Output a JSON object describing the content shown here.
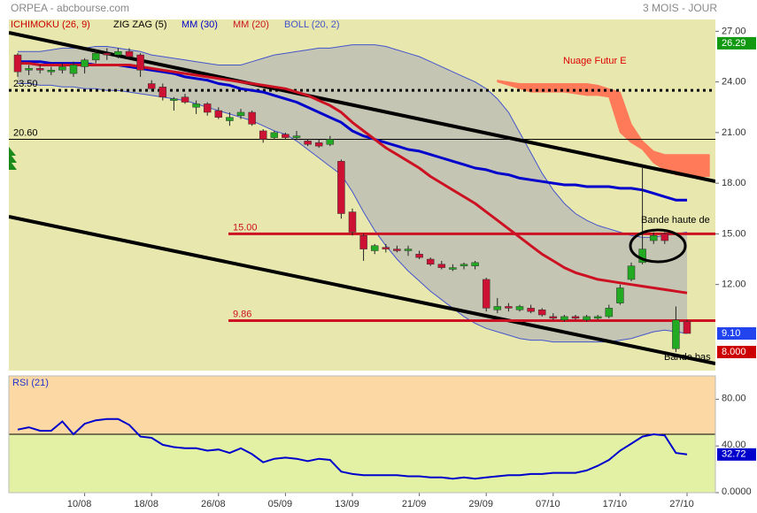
{
  "header": {
    "title": "ORPEA - abcbourse.com",
    "period": "3 MOIS - JOUR"
  },
  "chart_data": [
    {
      "type": "candlestick",
      "categories": [
        null,
        null,
        null,
        null,
        null,
        null,
        "10/08",
        null,
        null,
        null,
        null,
        null,
        "18/08",
        null,
        null,
        null,
        null,
        null,
        "26/08",
        null,
        null,
        null,
        null,
        null,
        "05/09",
        null,
        null,
        null,
        null,
        null,
        "13/09",
        null,
        null,
        null,
        null,
        null,
        "21/09",
        null,
        null,
        null,
        null,
        null,
        "29/09",
        null,
        null,
        null,
        null,
        null,
        "07/10",
        null,
        null,
        null,
        null,
        null,
        "17/10",
        null,
        null,
        null,
        null,
        null,
        "27/10",
        null,
        null
      ],
      "open": [
        25.6,
        24.7,
        24.8,
        24.6,
        24.7,
        24.5,
        24.9,
        25.3,
        25.7,
        25.6,
        25.8,
        25.6,
        23.9,
        23.7,
        22.9,
        23.1,
        22.5,
        22.7,
        22.3,
        21.7,
        22.0,
        22.2,
        21.1,
        20.7,
        20.9,
        20.7,
        20.5,
        20.4,
        20.3,
        19.3,
        16.3,
        14.9,
        14.0,
        14.2,
        14.1,
        14.0,
        13.8,
        13.5,
        13.2,
        12.9,
        13.1,
        13.1,
        12.3,
        10.5,
        10.7,
        10.5,
        10.6,
        10.5,
        10.1,
        9.9,
        10.1,
        9.9,
        10.0,
        10.1,
        10.9,
        12.3,
        13.3,
        14.6,
        15.0,
        8.2,
        9.8,
        null,
        null
      ],
      "high": [
        25.7,
        25.0,
        25.0,
        24.9,
        25.1,
        25.2,
        25.4,
        25.9,
        26.0,
        26.0,
        26.0,
        25.7,
        24.1,
        23.9,
        23.1,
        23.3,
        22.9,
        22.8,
        22.5,
        22.2,
        22.4,
        22.3,
        21.2,
        21.1,
        21.0,
        21.1,
        20.6,
        20.6,
        20.8,
        19.4,
        16.5,
        15.0,
        14.4,
        14.4,
        14.3,
        14.3,
        14.0,
        13.6,
        13.4,
        13.2,
        13.3,
        13.4,
        12.4,
        11.2,
        10.9,
        10.8,
        10.8,
        10.6,
        10.3,
        10.2,
        10.2,
        10.2,
        10.2,
        10.8,
        12.0,
        13.3,
        18.9,
        15.1,
        15.1,
        10.7,
        9.9,
        null,
        null
      ],
      "low": [
        24.3,
        24.4,
        24.5,
        24.4,
        24.5,
        24.3,
        24.5,
        25.1,
        25.3,
        25.4,
        25.4,
        24.3,
        23.5,
        22.9,
        22.3,
        22.7,
        22.1,
        22.0,
        21.8,
        21.4,
        21.8,
        21.4,
        20.4,
        20.6,
        20.6,
        20.6,
        20.2,
        20.1,
        20.2,
        15.9,
        14.9,
        13.4,
        13.8,
        13.9,
        13.9,
        13.7,
        13.5,
        13.1,
        12.9,
        12.8,
        12.9,
        12.9,
        10.4,
        10.3,
        10.4,
        10.4,
        10.3,
        10.1,
        9.9,
        9.8,
        9.9,
        9.8,
        9.9,
        10.0,
        10.8,
        12.2,
        13.2,
        14.4,
        14.4,
        8.0,
        9.1,
        null,
        null
      ],
      "close": [
        24.6,
        24.8,
        24.7,
        24.7,
        24.9,
        25.0,
        25.3,
        25.7,
        25.6,
        25.8,
        25.5,
        24.7,
        23.6,
        23.1,
        23.0,
        22.8,
        22.7,
        22.2,
        21.9,
        21.9,
        22.2,
        21.5,
        20.6,
        21.0,
        20.7,
        20.8,
        20.3,
        20.2,
        20.6,
        16.2,
        15.1,
        14.1,
        14.3,
        14.1,
        14.0,
        14.1,
        13.6,
        13.2,
        13.0,
        13.0,
        13.2,
        13.3,
        10.6,
        10.7,
        10.6,
        10.7,
        10.4,
        10.2,
        10.0,
        10.1,
        10.0,
        10.1,
        10.1,
        10.6,
        11.8,
        13.1,
        14.1,
        14.9,
        14.6,
        9.9,
        9.1,
        null,
        null
      ],
      "up_color": "#22aa22",
      "down_color": "#cc1133",
      "ylim": [
        6.9,
        27.7
      ],
      "yticks": [
        {
          "value": 12,
          "label": "12.00"
        },
        {
          "value": 15,
          "label": "15.00"
        },
        {
          "value": 18,
          "label": "18.00"
        },
        {
          "value": 21,
          "label": "21.00"
        },
        {
          "value": 24,
          "label": "24.00"
        },
        {
          "value": 27,
          "label": "27.00"
        }
      ],
      "grid": false,
      "indicators": [
        {
          "name": "ICHIMOKU (26, 9)",
          "kind": "cloud",
          "color": "#cc0000",
          "fill": "#ff7a58",
          "upper": [
            null,
            null,
            null,
            null,
            null,
            null,
            null,
            null,
            null,
            null,
            null,
            null,
            null,
            null,
            null,
            null,
            null,
            null,
            null,
            null,
            null,
            null,
            null,
            null,
            null,
            null,
            null,
            null,
            null,
            null,
            null,
            null,
            null,
            null,
            null,
            null,
            null,
            null,
            null,
            null,
            null,
            null,
            null,
            24.1,
            24.0,
            23.9,
            23.9,
            23.9,
            23.9,
            23.9,
            23.9,
            23.9,
            23.8,
            23.6,
            23.4,
            21.5,
            20.5,
            19.9,
            19.7,
            19.7,
            19.7,
            19.7,
            19.7
          ],
          "lower": [
            null,
            null,
            null,
            null,
            null,
            null,
            null,
            null,
            null,
            null,
            null,
            null,
            null,
            null,
            null,
            null,
            null,
            null,
            null,
            null,
            null,
            null,
            null,
            null,
            null,
            null,
            null,
            null,
            null,
            null,
            null,
            null,
            null,
            null,
            null,
            null,
            null,
            null,
            null,
            null,
            null,
            null,
            null,
            24.0,
            23.8,
            23.6,
            23.4,
            23.4,
            23.4,
            23.4,
            23.3,
            23.2,
            23.2,
            23.1,
            21.0,
            20.4,
            20.0,
            19.2,
            18.8,
            18.5,
            18.4,
            18.4,
            18.4
          ]
        },
        {
          "name": "ZIG ZAG (5)",
          "kind": "zigzag",
          "color": "#000000"
        },
        {
          "name": "MM (30)",
          "kind": "line",
          "color": "#0000cc",
          "values": [
            25.2,
            25.2,
            25.2,
            25.1,
            25.1,
            25.1,
            25.1,
            25.0,
            25.0,
            25.0,
            24.9,
            24.8,
            24.7,
            24.6,
            24.5,
            24.3,
            24.2,
            24.1,
            23.9,
            23.8,
            23.6,
            23.5,
            23.4,
            23.2,
            23.0,
            22.8,
            22.5,
            22.2,
            21.9,
            21.6,
            21.1,
            20.8,
            20.6,
            20.4,
            20.2,
            20.0,
            19.9,
            19.7,
            19.5,
            19.3,
            19.1,
            18.9,
            18.8,
            18.6,
            18.5,
            18.3,
            18.2,
            18.1,
            18.0,
            17.9,
            17.9,
            17.8,
            17.8,
            17.8,
            17.7,
            17.7,
            17.6,
            17.4,
            17.2,
            17.0,
            17.0,
            null,
            null
          ]
        },
        {
          "name": "MM (20)",
          "kind": "line",
          "color": "#cc1122",
          "values": [
            25.1,
            25.1,
            25.0,
            25.0,
            25.0,
            25.0,
            25.0,
            25.0,
            25.0,
            25.0,
            25.0,
            24.9,
            24.8,
            24.7,
            24.6,
            24.5,
            24.4,
            24.3,
            24.2,
            24.1,
            24.0,
            23.9,
            23.8,
            23.7,
            23.6,
            23.4,
            23.2,
            22.9,
            22.6,
            22.2,
            21.6,
            21.1,
            20.6,
            20.1,
            19.7,
            19.3,
            18.9,
            18.4,
            18.0,
            17.6,
            17.2,
            16.8,
            16.3,
            15.8,
            15.3,
            14.8,
            14.3,
            13.8,
            13.4,
            13.0,
            12.7,
            12.5,
            12.3,
            12.2,
            12.1,
            12.0,
            11.9,
            11.8,
            11.7,
            11.6,
            11.5,
            null,
            null
          ]
        },
        {
          "name": "BOLL (20, 2)",
          "kind": "band",
          "color": "#4455cc",
          "fill": "#a8a8b8",
          "upper": [
            25.8,
            25.8,
            25.8,
            25.9,
            26.0,
            26.0,
            26.0,
            26.1,
            26.1,
            26.0,
            25.9,
            25.8,
            25.6,
            25.5,
            25.4,
            25.3,
            25.2,
            25.1,
            25.0,
            25.0,
            25.0,
            25.2,
            25.4,
            25.6,
            25.7,
            25.8,
            25.9,
            26.0,
            26.0,
            26.1,
            26.2,
            26.2,
            26.2,
            26.1,
            25.9,
            25.7,
            25.5,
            25.2,
            24.9,
            24.6,
            24.3,
            24.0,
            23.6,
            23.0,
            22.2,
            21.0,
            19.8,
            18.6,
            17.6,
            16.8,
            16.2,
            15.8,
            15.5,
            15.3,
            15.1,
            14.9,
            14.8,
            14.8,
            14.9,
            15.0,
            15.1,
            null,
            null
          ],
          "lower": [
            23.9,
            23.9,
            23.8,
            23.8,
            23.7,
            23.7,
            23.6,
            23.6,
            23.5,
            23.5,
            23.4,
            23.3,
            23.2,
            23.1,
            23.0,
            22.9,
            22.7,
            22.5,
            22.3,
            22.1,
            21.9,
            21.7,
            21.4,
            21.1,
            20.9,
            20.5,
            20.0,
            19.5,
            19.0,
            18.5,
            17.5,
            16.3,
            15.2,
            14.3,
            13.5,
            12.8,
            12.2,
            11.6,
            11.1,
            10.6,
            10.1,
            9.7,
            9.4,
            9.2,
            9.0,
            8.8,
            8.7,
            8.7,
            8.6,
            8.6,
            8.6,
            8.6,
            8.6,
            8.6,
            8.7,
            8.8,
            9.0,
            9.2,
            9.3,
            9.2,
            9.1,
            null,
            null
          ]
        }
      ],
      "levels": [
        {
          "value": 23.5,
          "label": "23.50",
          "style": "dotted",
          "color": "#000000"
        },
        {
          "value": 20.6,
          "label": "20.60",
          "style": "thin",
          "color": "#000000"
        },
        {
          "value": 15,
          "label": "15.00",
          "style": "thick",
          "color": "#cc1122"
        },
        {
          "value": 9.86,
          "label": "9.86",
          "style": "thick",
          "color": "#cc1122"
        }
      ],
      "markers": [
        {
          "value": 26.29,
          "label": "26.29",
          "color": "#119911"
        },
        {
          "value": 9.1,
          "label": "9.10",
          "color": "#2244ee"
        },
        {
          "value": 8,
          "label": "8.000",
          "color": "#cc0000"
        }
      ],
      "annotations": [
        "Nuage Futur E",
        "Bande haute de",
        "Bande bas"
      ]
    },
    {
      "type": "line",
      "title": "RSI (21)",
      "color": "#0000cc",
      "values": [
        54,
        56,
        53,
        53,
        61,
        50,
        59,
        62,
        63,
        63,
        58,
        48,
        47,
        41,
        39,
        38,
        38,
        36,
        37,
        34,
        38,
        33,
        26,
        29,
        30,
        29,
        27,
        29,
        28,
        18,
        16,
        15,
        15,
        15,
        15,
        14,
        14,
        13,
        13,
        12,
        13,
        12,
        13,
        14,
        15,
        15,
        16,
        16,
        17,
        17,
        17,
        19,
        23,
        28,
        36,
        42,
        48,
        50,
        49,
        34,
        32.72,
        null,
        null
      ],
      "ylim": [
        0,
        100
      ],
      "yticks": [
        {
          "value": 0,
          "label": "0.0000"
        },
        {
          "value": 40,
          "label": "40.00"
        },
        {
          "value": 80,
          "label": "80.00"
        }
      ],
      "reference_line": 50,
      "upper_fill": "#fcd9a4",
      "lower_fill": "#e3f1a4"
    }
  ]
}
